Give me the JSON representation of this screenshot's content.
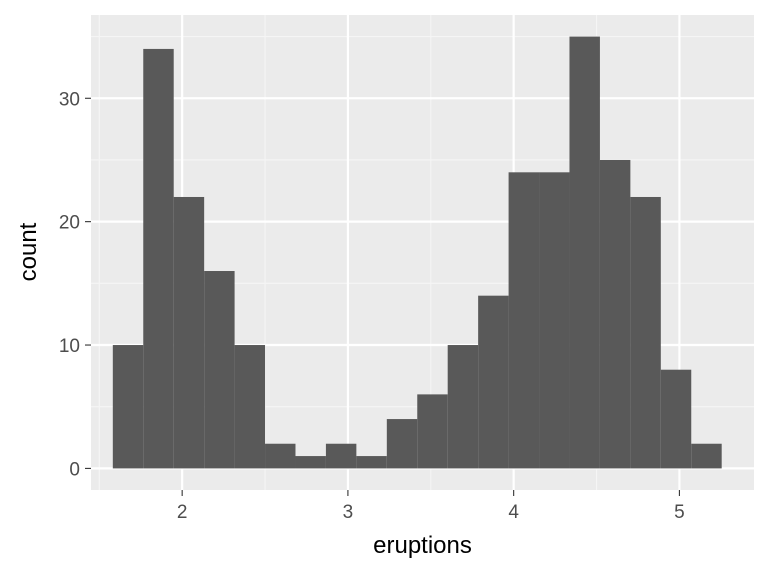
{
  "chart_data": {
    "type": "histogram",
    "xlabel": "eruptions",
    "ylabel": "count",
    "xlim": [
      1.45,
      5.45
    ],
    "ylim": [
      -1.75,
      36.75
    ],
    "x_ticks": [
      2,
      3,
      4,
      5
    ],
    "y_ticks": [
      0,
      10,
      20,
      30
    ],
    "x_tick_labels": [
      "2",
      "3",
      "4",
      "5"
    ],
    "y_tick_labels": [
      "0",
      "10",
      "20",
      "30"
    ],
    "grid": true,
    "legend": "none",
    "bins": [
      {
        "x_start": 1.5816,
        "x_end": 1.7653,
        "count": 10
      },
      {
        "x_start": 1.7653,
        "x_end": 1.949,
        "count": 34
      },
      {
        "x_start": 1.949,
        "x_end": 2.1327,
        "count": 22
      },
      {
        "x_start": 2.1327,
        "x_end": 2.3163,
        "count": 16
      },
      {
        "x_start": 2.3163,
        "x_end": 2.5,
        "count": 10
      },
      {
        "x_start": 2.5,
        "x_end": 2.6837,
        "count": 2
      },
      {
        "x_start": 2.6837,
        "x_end": 2.8673,
        "count": 1
      },
      {
        "x_start": 2.8673,
        "x_end": 3.051,
        "count": 2
      },
      {
        "x_start": 3.051,
        "x_end": 3.2347,
        "count": 1
      },
      {
        "x_start": 3.2347,
        "x_end": 3.4184,
        "count": 4
      },
      {
        "x_start": 3.4184,
        "x_end": 3.602,
        "count": 6
      },
      {
        "x_start": 3.602,
        "x_end": 3.7857,
        "count": 10
      },
      {
        "x_start": 3.7857,
        "x_end": 3.9694,
        "count": 14
      },
      {
        "x_start": 3.9694,
        "x_end": 4.1531,
        "count": 24
      },
      {
        "x_start": 4.1531,
        "x_end": 4.3367,
        "count": 24
      },
      {
        "x_start": 4.3367,
        "x_end": 4.5204,
        "count": 35
      },
      {
        "x_start": 4.5204,
        "x_end": 4.7041,
        "count": 25
      },
      {
        "x_start": 4.7041,
        "x_end": 4.8878,
        "count": 22
      },
      {
        "x_start": 4.8878,
        "x_end": 5.0714,
        "count": 8
      },
      {
        "x_start": 5.0714,
        "x_end": 5.2551,
        "count": 2
      }
    ],
    "colors": {
      "panel_background": "#ebebeb",
      "grid_major": "#ffffff",
      "grid_minor": "#f5f5f5",
      "bar_fill": "#595959",
      "tick_mark": "#333333"
    }
  }
}
